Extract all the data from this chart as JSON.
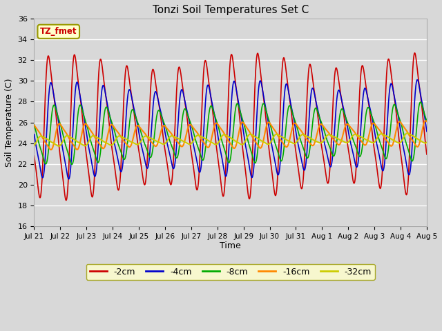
{
  "title": "Tonzi Soil Temperatures Set C",
  "xlabel": "Time",
  "ylabel": "Soil Temperature (C)",
  "ylim": [
    16,
    36
  ],
  "yticks": [
    16,
    18,
    20,
    22,
    24,
    26,
    28,
    30,
    32,
    34,
    36
  ],
  "bg_color": "#d8d8d8",
  "plot_bg_color": "#d8d8d8",
  "grid_color": "#ffffff",
  "series": [
    {
      "label": "-2cm",
      "color": "#cc0000",
      "amplitude": 7.8,
      "mean": 25.5,
      "phase_shift": 0.0,
      "lw": 1.2
    },
    {
      "label": "-4cm",
      "color": "#0000cc",
      "amplitude": 5.2,
      "mean": 25.2,
      "phase_shift": 0.1,
      "lw": 1.2
    },
    {
      "label": "-8cm",
      "color": "#00aa00",
      "amplitude": 3.2,
      "mean": 24.8,
      "phase_shift": 0.22,
      "lw": 1.2
    },
    {
      "label": "-16cm",
      "color": "#ff8800",
      "amplitude": 1.4,
      "mean": 24.6,
      "phase_shift": 0.42,
      "lw": 1.5
    },
    {
      "label": "-32cm",
      "color": "#cccc00",
      "amplitude": 0.55,
      "mean": 24.2,
      "phase_shift": 0.72,
      "lw": 1.5
    }
  ],
  "xtick_labels": [
    "Jul 21",
    "Jul 22",
    "Jul 23",
    "Jul 24",
    "Jul 25",
    "Jul 26",
    "Jul 27",
    "Jul 28",
    "Jul 29",
    "Jul 30",
    "Jul 31",
    "Aug 1",
    "Aug 2",
    "Aug 3",
    "Aug 4",
    "Aug 5"
  ],
  "n_days": 15,
  "samples_per_day": 120,
  "legend_box_color": "#ffffcc",
  "legend_box_edge": "#999900",
  "annotation_text": "TZ_fmet",
  "annotation_color": "#cc0000",
  "annotation_bg": "#ffffcc",
  "annotation_edge": "#999900",
  "figsize": [
    6.4,
    4.8
  ],
  "dpi": 100
}
